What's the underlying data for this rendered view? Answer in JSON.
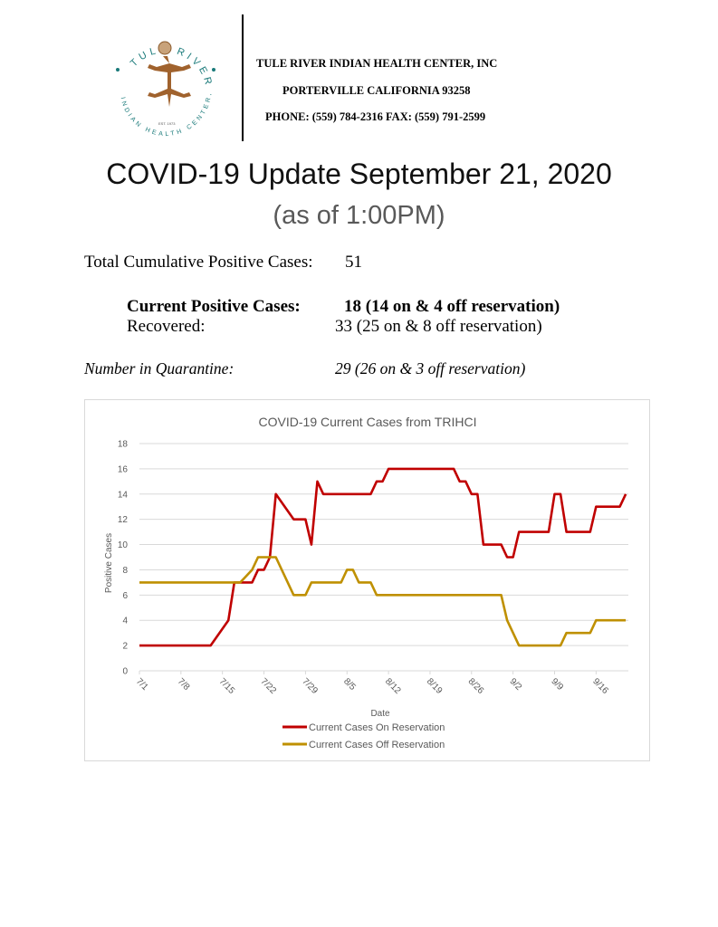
{
  "logo": {
    "top_text": "TULE RIVER",
    "bottom_text": "INDIAN HEALTH CENTER, INC",
    "est": "EST. 1973"
  },
  "header": {
    "org": "TULE RIVER INDIAN HEALTH CENTER, INC",
    "city": "PORTERVILLE CALIFORNIA 93258",
    "phone": "PHONE: (559) 784-2316 FAX: (559) 791-2599"
  },
  "title": "COVID-19 Update September 21, 2020",
  "subtitle": "(as of 1:00PM)",
  "stats": {
    "total_label": "Total Cumulative Positive Cases:",
    "total_value": "51",
    "current_label": "Current Positive Cases:",
    "current_value": "18 (14 on & 4 off reservation)",
    "recovered_label": "Recovered:",
    "recovered_value": "33 (25 on & 8 off reservation)",
    "quarantine_label": "Number in Quarantine:",
    "quarantine_value": "29 (26 on & 3 off reservation)"
  },
  "chart_data": {
    "type": "line",
    "title": "COVID-19 Current Cases from TRIHCI",
    "xlabel": "Date",
    "ylabel": "Positive Cases",
    "ylim": [
      0,
      18
    ],
    "yticks": [
      "0",
      "2",
      "4",
      "6",
      "8",
      "10",
      "12",
      "14",
      "16",
      "18"
    ],
    "xticks": [
      "7/1",
      "7/8",
      "7/15",
      "7/22",
      "7/29",
      "8/5",
      "8/12",
      "8/19",
      "8/26",
      "9/2",
      "9/9",
      "9/16"
    ],
    "x_start": "7/1",
    "x_end": "9/21",
    "grid": true,
    "legend": "bottom",
    "series": [
      {
        "name": "Current Cases On Reservation",
        "color": "#c00000",
        "points": [
          [
            "7/1",
            2
          ],
          [
            "7/13",
            2
          ],
          [
            "7/16",
            4
          ],
          [
            "7/17",
            7
          ],
          [
            "7/20",
            7
          ],
          [
            "7/21",
            8
          ],
          [
            "7/22",
            8
          ],
          [
            "7/23",
            9
          ],
          [
            "7/24",
            14
          ],
          [
            "7/27",
            12
          ],
          [
            "7/29",
            12
          ],
          [
            "7/30",
            10
          ],
          [
            "7/31",
            15
          ],
          [
            "8/1",
            14
          ],
          [
            "8/9",
            14
          ],
          [
            "8/10",
            15
          ],
          [
            "8/11",
            15
          ],
          [
            "8/12",
            16
          ],
          [
            "8/23",
            16
          ],
          [
            "8/24",
            15
          ],
          [
            "8/25",
            15
          ],
          [
            "8/26",
            14
          ],
          [
            "8/27",
            14
          ],
          [
            "8/28",
            10
          ],
          [
            "8/31",
            10
          ],
          [
            "9/1",
            9
          ],
          [
            "9/2",
            9
          ],
          [
            "9/3",
            11
          ],
          [
            "9/8",
            11
          ],
          [
            "9/9",
            14
          ],
          [
            "9/10",
            14
          ],
          [
            "9/11",
            11
          ],
          [
            "9/15",
            11
          ],
          [
            "9/16",
            13
          ],
          [
            "9/20",
            13
          ],
          [
            "9/21",
            14
          ]
        ]
      },
      {
        "name": "Current Cases Off Reservation",
        "color": "#bf9000",
        "points": [
          [
            "7/1",
            7
          ],
          [
            "7/18",
            7
          ],
          [
            "7/20",
            8
          ],
          [
            "7/21",
            9
          ],
          [
            "7/24",
            9
          ],
          [
            "7/27",
            6
          ],
          [
            "7/29",
            6
          ],
          [
            "7/30",
            7
          ],
          [
            "8/4",
            7
          ],
          [
            "8/5",
            8
          ],
          [
            "8/6",
            8
          ],
          [
            "8/7",
            7
          ],
          [
            "8/9",
            7
          ],
          [
            "8/10",
            6
          ],
          [
            "8/31",
            6
          ],
          [
            "9/1",
            4
          ],
          [
            "9/3",
            2
          ],
          [
            "9/10",
            2
          ],
          [
            "9/11",
            3
          ],
          [
            "9/15",
            3
          ],
          [
            "9/16",
            4
          ],
          [
            "9/21",
            4
          ]
        ]
      }
    ]
  }
}
